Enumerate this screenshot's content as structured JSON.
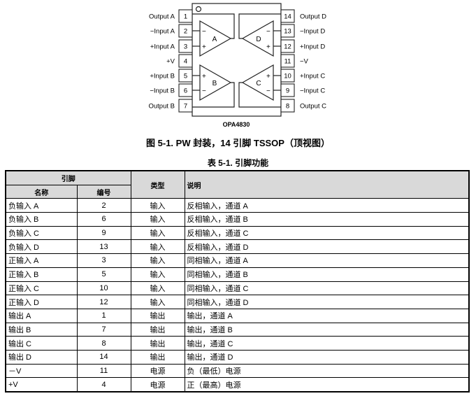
{
  "diagram": {
    "part_number": "OPA4830",
    "pins_left": [
      {
        "num": "1",
        "label": "Output A"
      },
      {
        "num": "2",
        "label": "−Input A"
      },
      {
        "num": "3",
        "label": "+Input A"
      },
      {
        "num": "4",
        "label": "+V"
      },
      {
        "num": "5",
        "label": "+Input B"
      },
      {
        "num": "6",
        "label": "−Input B"
      },
      {
        "num": "7",
        "label": "Output B"
      }
    ],
    "pins_right": [
      {
        "num": "14",
        "label": "Output D"
      },
      {
        "num": "13",
        "label": "−Input D"
      },
      {
        "num": "12",
        "label": "+Input D"
      },
      {
        "num": "11",
        "label": "−V"
      },
      {
        "num": "10",
        "label": "+Input C"
      },
      {
        "num": "9",
        "label": "−Input C"
      },
      {
        "num": "8",
        "label": "Output C"
      }
    ],
    "amps": {
      "a": "A",
      "b": "B",
      "c": "C",
      "d": "D",
      "plus": "+",
      "minus": "−"
    }
  },
  "figure_caption": "图 5-1. PW 封装，14 引脚 TSSOP（顶视图）",
  "table_caption": "表 5-1. 引脚功能",
  "table": {
    "headers": {
      "pin": "引脚",
      "name": "名称",
      "number": "编号",
      "type": "类型",
      "description": "说明"
    },
    "rows": [
      [
        "负输入 A",
        "2",
        "输入",
        "反相输入，通道 A"
      ],
      [
        "负输入 B",
        "6",
        "输入",
        "反相输入，通道 B"
      ],
      [
        "负输入 C",
        "9",
        "输入",
        "反相输入，通道 C"
      ],
      [
        "负输入 D",
        "13",
        "输入",
        "反相输入，通道 D"
      ],
      [
        "正输入 A",
        "3",
        "输入",
        "同相输入，通道 A"
      ],
      [
        "正输入 B",
        "5",
        "输入",
        "同相输入，通道 B"
      ],
      [
        "正输入 C",
        "10",
        "输入",
        "同相输入，通道 C"
      ],
      [
        "正输入 D",
        "12",
        "输入",
        "同相输入，通道 D"
      ],
      [
        "输出 A",
        "1",
        "输出",
        "输出，通道 A"
      ],
      [
        "输出 B",
        "7",
        "输出",
        "输出，通道 B"
      ],
      [
        "输出 C",
        "8",
        "输出",
        "输出，通道 C"
      ],
      [
        "输出 D",
        "14",
        "输出",
        "输出，通道 D"
      ],
      [
        "－V",
        "11",
        "电源",
        "负（最低）电源"
      ],
      [
        "+V",
        "4",
        "电源",
        "正（最高）电源"
      ]
    ]
  }
}
